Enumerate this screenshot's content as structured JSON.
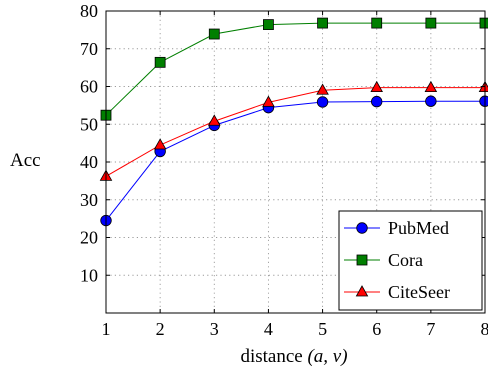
{
  "chart_data": {
    "type": "line",
    "x": [
      1,
      2,
      3,
      4,
      5,
      6,
      7,
      8
    ],
    "xlim": [
      1,
      8
    ],
    "ylim": [
      0,
      80
    ],
    "xticks": [
      1,
      2,
      3,
      4,
      5,
      6,
      7,
      8
    ],
    "yticks": [
      10,
      20,
      30,
      40,
      50,
      60,
      70,
      80
    ],
    "xlabel_text": "distance",
    "xlabel_math": "(a, v)",
    "ylabel": "Acc",
    "grid": true,
    "legend_position": "bottom-right",
    "series": [
      {
        "name": "PubMed",
        "color": "#0000ff",
        "marker": "circle",
        "values": [
          24.5,
          42.8,
          49.7,
          54.4,
          55.9,
          56.0,
          56.1,
          56.1
        ]
      },
      {
        "name": "Cora",
        "color": "#007f00",
        "marker": "square",
        "values": [
          52.4,
          66.4,
          73.9,
          76.4,
          76.8,
          76.8,
          76.8,
          76.8
        ]
      },
      {
        "name": "CiteSeer",
        "color": "#ff0000",
        "marker": "triangle",
        "values": [
          36.2,
          44.5,
          50.8,
          55.8,
          59.0,
          59.7,
          59.7,
          59.7
        ]
      }
    ]
  }
}
